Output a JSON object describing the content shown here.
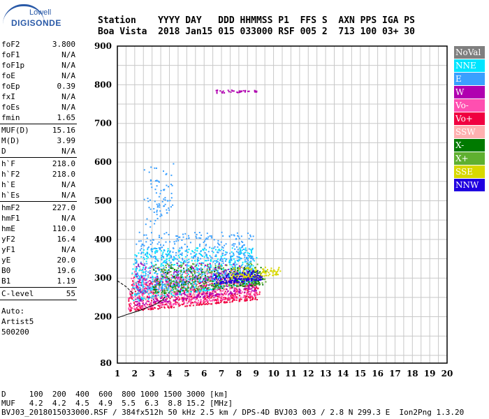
{
  "logo": {
    "top": "Lowell",
    "main": "DIGISONDE"
  },
  "header": {
    "line1": "Station    YYYY DAY   DDD HHMMSS P1  FFS S  AXN PPS IGA PS",
    "line2": "Boa Vista  2018 Jan15 015 033000 RSF 005 2  713 100 03+ 30"
  },
  "params": {
    "group1": [
      {
        "name": "foF2",
        "value": "3.800"
      },
      {
        "name": "foF1",
        "value": "N/A"
      },
      {
        "name": "foF1p",
        "value": "N/A"
      },
      {
        "name": "foE",
        "value": "N/A"
      },
      {
        "name": "foEp",
        "value": "0.39"
      },
      {
        "name": "fxI",
        "value": "N/A"
      },
      {
        "name": "foEs",
        "value": "N/A"
      },
      {
        "name": "fmin",
        "value": "1.65"
      }
    ],
    "group2": [
      {
        "name": "MUF(D)",
        "value": "15.16"
      },
      {
        "name": "M(D)",
        "value": "3.99"
      },
      {
        "name": "D",
        "value": "N/A"
      }
    ],
    "group3": [
      {
        "name": "h`F",
        "value": "218.0"
      },
      {
        "name": "h`F2",
        "value": "218.0"
      },
      {
        "name": "h`E",
        "value": "N/A"
      },
      {
        "name": "h`Es",
        "value": "N/A"
      }
    ],
    "group4": [
      {
        "name": "hmF2",
        "value": "227.0"
      },
      {
        "name": "hmF1",
        "value": "N/A"
      },
      {
        "name": "hmE",
        "value": "110.0"
      },
      {
        "name": "yF2",
        "value": "16.4"
      },
      {
        "name": "yF1",
        "value": "N/A"
      },
      {
        "name": "yE",
        "value": "20.0"
      },
      {
        "name": "B0",
        "value": "19.6"
      },
      {
        "name": "B1",
        "value": "1.19"
      }
    ],
    "group5": [
      {
        "name": "C-level",
        "value": "55"
      }
    ],
    "auto": [
      "Auto:",
      "Artist5",
      "500200"
    ]
  },
  "legend": [
    {
      "label": "NoVal",
      "color": "#7f7f7f"
    },
    {
      "label": "NNE",
      "color": "#00e5ff"
    },
    {
      "label": "E",
      "color": "#3aa0ff"
    },
    {
      "label": "W",
      "color": "#b000b0"
    },
    {
      "label": "Vo-",
      "color": "#ff4fb0"
    },
    {
      "label": "Vo+",
      "color": "#f00040"
    },
    {
      "label": "SSW",
      "color": "#ffb0b0"
    },
    {
      "label": "X-",
      "color": "#007a00"
    },
    {
      "label": "X+",
      "color": "#5fb030"
    },
    {
      "label": "SSE",
      "color": "#d8d800"
    },
    {
      "label": "NNW",
      "color": "#2000e0"
    }
  ],
  "footer": {
    "line1": "D     100  200  400  600  800 1000 1500 3000 [km]",
    "line2": "MUF   4.2  4.2  4.5  4.9  5.5  6.3  8.8 15.2 [MHz]",
    "line3": "BVJ03_2018015033000.RSF / 384fx512h 50 kHz 2.5 km / DPS-4D BVJ03 003 / 2.8 N 299.3 E  Ion2Png 1.3.20"
  },
  "chart_data": {
    "type": "scatter",
    "title": "",
    "xlabel": "",
    "ylabel": "",
    "xlim": [
      1,
      20
    ],
    "ylim": [
      80,
      900
    ],
    "x_ticks": [
      "1",
      "2",
      "3",
      "4",
      "5",
      "6",
      "7",
      "8",
      "9",
      "10",
      "11",
      "12",
      "13",
      "14",
      "15",
      "16",
      "17",
      "18",
      "19",
      "20"
    ],
    "y_ticks": [
      "80",
      "200",
      "300",
      "400",
      "500",
      "600",
      "700",
      "800",
      "900"
    ],
    "grid": true,
    "legend_position": "right",
    "clusters": [
      {
        "series": "Vo+",
        "x": [
          1.6,
          9.2
        ],
        "y": [
          215,
          305
        ],
        "count": 600
      },
      {
        "series": "Vo-",
        "x": [
          1.6,
          9.0
        ],
        "y": [
          220,
          320
        ],
        "count": 500
      },
      {
        "series": "NNE",
        "x": [
          1.8,
          9.0
        ],
        "y": [
          240,
          380
        ],
        "count": 700
      },
      {
        "series": "E",
        "x": [
          2.0,
          8.8
        ],
        "y": [
          260,
          420
        ],
        "count": 650
      },
      {
        "series": "W",
        "x": [
          2.0,
          9.0
        ],
        "y": [
          230,
          340
        ],
        "count": 350
      },
      {
        "series": "X-",
        "x": [
          3.0,
          9.4
        ],
        "y": [
          260,
          330
        ],
        "count": 220
      },
      {
        "series": "X+",
        "x": [
          3.0,
          9.6
        ],
        "y": [
          260,
          340
        ],
        "count": 220
      },
      {
        "series": "SSE",
        "x": [
          7.5,
          10.4
        ],
        "y": [
          300,
          330
        ],
        "count": 140
      },
      {
        "series": "NNW",
        "x": [
          6.5,
          9.3
        ],
        "y": [
          285,
          320
        ],
        "count": 160
      },
      {
        "series": "SSW",
        "x": [
          1.8,
          8.0
        ],
        "y": [
          240,
          330
        ],
        "count": 100
      },
      {
        "series": "E",
        "x": [
          2.5,
          4.2
        ],
        "y": [
          420,
          600
        ],
        "count": 80
      },
      {
        "series": "W",
        "x": [
          6.6,
          9.0
        ],
        "y": [
          780,
          788
        ],
        "count": 40
      }
    ],
    "profile_x": [
      1.0,
      1.5,
      2.0,
      2.4,
      2.8,
      3.2,
      3.6,
      3.75
    ],
    "profile_y": [
      197,
      205,
      212,
      218,
      225,
      232,
      243,
      252
    ],
    "trace_x": [
      1.0,
      1.5,
      1.9
    ],
    "trace_y": [
      293,
      278,
      260
    ]
  }
}
